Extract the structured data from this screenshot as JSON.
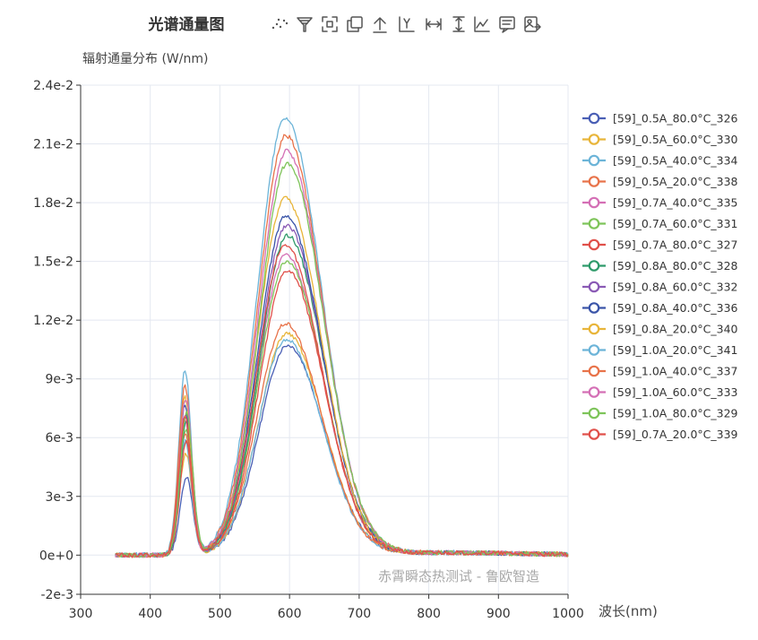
{
  "chart_data": {
    "type": "line",
    "title": "光谱通量图",
    "ylabel": "辐射通量分布 (W/nm)",
    "xlabel": "波长(nm)",
    "watermark": "赤霄瞬态热测试 - 鲁欧智造",
    "xlim": [
      300,
      1000
    ],
    "ylim": [
      -0.002,
      0.024
    ],
    "x_ticks": [
      "300",
      "400",
      "500",
      "600",
      "700",
      "800",
      "900",
      "1000"
    ],
    "y_ticks": [
      "-2e-3",
      "0e+0",
      "3e-3",
      "6e-3",
      "9e-3",
      "1.2e-2",
      "1.5e-2",
      "1.8e-2",
      "2.1e-2",
      "2.4e-2"
    ],
    "y_tick_values": [
      -0.002,
      0,
      0.003,
      0.006,
      0.009,
      0.012,
      0.015,
      0.018,
      0.021,
      0.024
    ],
    "grid": true,
    "legend_position": "right",
    "x_range_data": [
      350,
      1000
    ],
    "series": [
      {
        "name": "[59]_0.5A_80.0°C_326",
        "color": "#4a5fb5",
        "blue_peak": 0.004,
        "blue_peak_x": 452,
        "main_peak": 0.0107,
        "main_peak_x": 597
      },
      {
        "name": "[59]_0.5A_60.0°C_330",
        "color": "#e8b53a",
        "blue_peak": 0.0052,
        "blue_peak_x": 451,
        "main_peak": 0.0113,
        "main_peak_x": 596
      },
      {
        "name": "[59]_0.5A_40.0°C_334",
        "color": "#6cb4d8",
        "blue_peak": 0.0058,
        "blue_peak_x": 450,
        "main_peak": 0.011,
        "main_peak_x": 595
      },
      {
        "name": "[59]_0.5A_20.0°C_338",
        "color": "#e8734a",
        "blue_peak": 0.0062,
        "blue_peak_x": 450,
        "main_peak": 0.0118,
        "main_peak_x": 594
      },
      {
        "name": "[59]_0.7A_40.0°C_335",
        "color": "#d46fb5",
        "blue_peak": 0.0068,
        "blue_peak_x": 450,
        "main_peak": 0.0153,
        "main_peak_x": 595
      },
      {
        "name": "[59]_0.7A_60.0°C_331",
        "color": "#7ec45a",
        "blue_peak": 0.0064,
        "blue_peak_x": 451,
        "main_peak": 0.015,
        "main_peak_x": 596
      },
      {
        "name": "[59]_0.7A_80.0°C_327",
        "color": "#e0504a",
        "blue_peak": 0.0058,
        "blue_peak_x": 452,
        "main_peak": 0.0145,
        "main_peak_x": 597
      },
      {
        "name": "[59]_0.8A_80.0°C_328",
        "color": "#2e9a6a",
        "blue_peak": 0.0068,
        "blue_peak_x": 452,
        "main_peak": 0.0163,
        "main_peak_x": 597
      },
      {
        "name": "[59]_0.8A_60.0°C_332",
        "color": "#8a5ab5",
        "blue_peak": 0.0072,
        "blue_peak_x": 451,
        "main_peak": 0.0168,
        "main_peak_x": 596
      },
      {
        "name": "[59]_0.8A_40.0°C_336",
        "color": "#3a54a8",
        "blue_peak": 0.0076,
        "blue_peak_x": 450,
        "main_peak": 0.0173,
        "main_peak_x": 595
      },
      {
        "name": "[59]_0.8A_20.0°C_340",
        "color": "#e8b53a",
        "blue_peak": 0.008,
        "blue_peak_x": 450,
        "main_peak": 0.0182,
        "main_peak_x": 594
      },
      {
        "name": "[59]_1.0A_20.0°C_341",
        "color": "#6cb4d8",
        "blue_peak": 0.0094,
        "blue_peak_x": 450,
        "main_peak": 0.0223,
        "main_peak_x": 594
      },
      {
        "name": "[59]_1.0A_40.0°C_337",
        "color": "#e8734a",
        "blue_peak": 0.0086,
        "blue_peak_x": 450,
        "main_peak": 0.0214,
        "main_peak_x": 595
      },
      {
        "name": "[59]_1.0A_60.0°C_333",
        "color": "#d46fb5",
        "blue_peak": 0.008,
        "blue_peak_x": 451,
        "main_peak": 0.0206,
        "main_peak_x": 596
      },
      {
        "name": "[59]_1.0A_80.0°C_329",
        "color": "#7ec45a",
        "blue_peak": 0.0072,
        "blue_peak_x": 452,
        "main_peak": 0.02,
        "main_peak_x": 597
      },
      {
        "name": "[59]_0.7A_20.0°C_339",
        "color": "#e0504a",
        "blue_peak": 0.007,
        "blue_peak_x": 450,
        "main_peak": 0.0158,
        "main_peak_x": 594
      }
    ]
  },
  "toolbar": {
    "tools": [
      {
        "name": "scatter-tool-icon",
        "label": "散点"
      },
      {
        "name": "filter-tool-icon",
        "label": "筛选"
      },
      {
        "name": "zoom-tool-icon",
        "label": "缩放"
      },
      {
        "name": "copy-tool-icon",
        "label": "复制"
      },
      {
        "name": "upload-tool-icon",
        "label": "上传"
      },
      {
        "name": "y-axis-tool-icon",
        "label": "Y轴"
      },
      {
        "name": "x-range-tool-icon",
        "label": "X范围"
      },
      {
        "name": "y-range-tool-icon",
        "label": "Y范围"
      },
      {
        "name": "line-chart-tool-icon",
        "label": "折线"
      },
      {
        "name": "data-view-tool-icon",
        "label": "数据视图"
      },
      {
        "name": "save-image-tool-icon",
        "label": "保存图片"
      }
    ]
  }
}
